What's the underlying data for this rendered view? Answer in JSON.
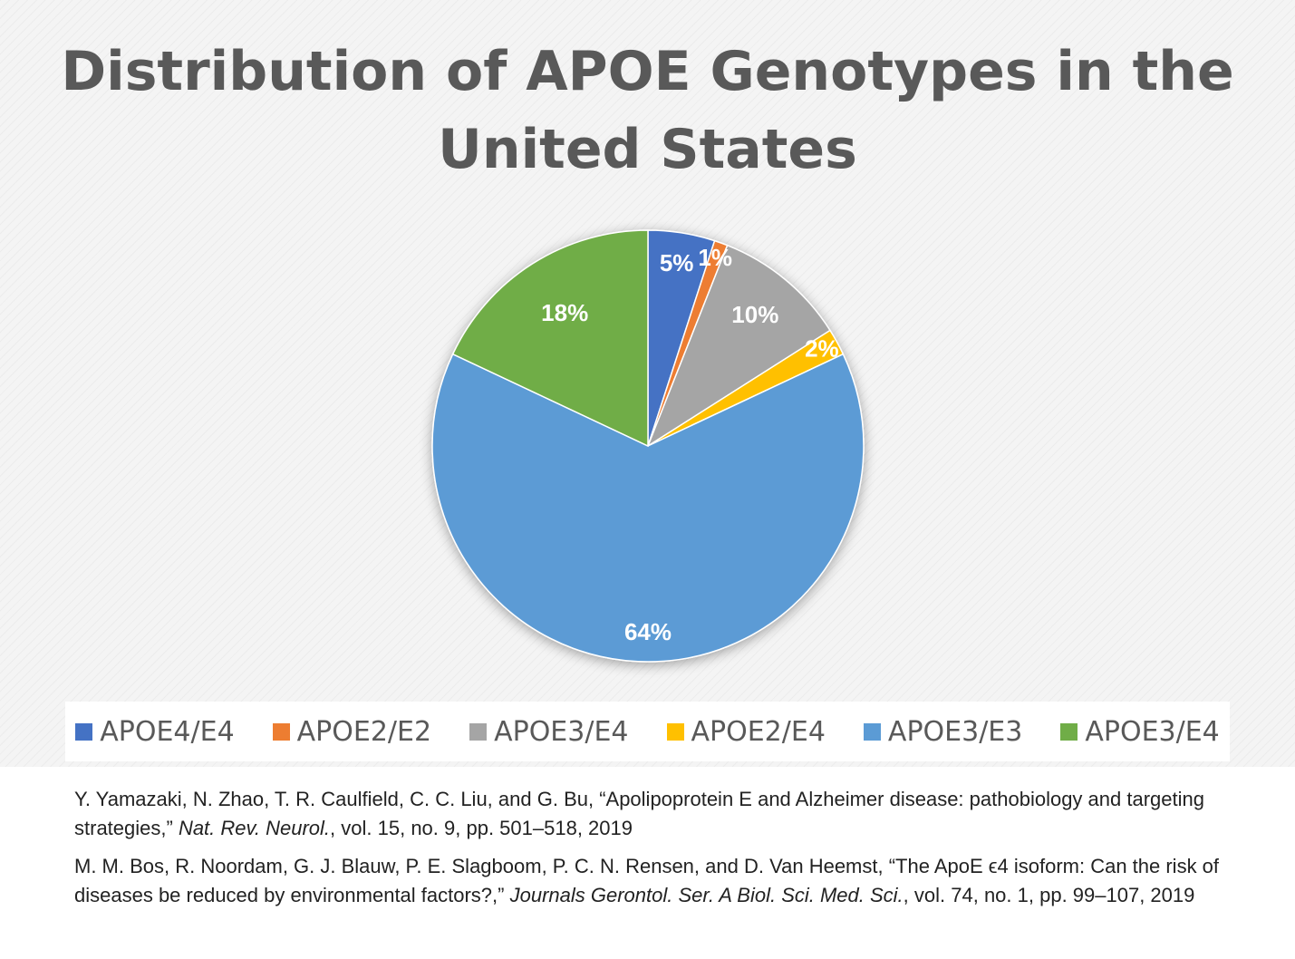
{
  "chart_data": {
    "type": "pie",
    "title": "Distribution of APOE Genotypes in the United States",
    "slices": [
      {
        "label": "APOE4/E4",
        "value": 5,
        "display": "5%",
        "color": "#4472c4"
      },
      {
        "label": "APOE2/E2",
        "value": 1,
        "display": "1%",
        "color": "#ed7d31"
      },
      {
        "label": "APOE3/E4",
        "value": 10,
        "display": "10%",
        "color": "#a5a5a5"
      },
      {
        "label": "APOE2/E4",
        "value": 2,
        "display": "2%",
        "color": "#ffc000"
      },
      {
        "label": "APOE3/E3",
        "value": 64,
        "display": "64%",
        "color": "#5b9bd5"
      },
      {
        "label": "APOE3/E4",
        "value": 18,
        "display": "18%",
        "color": "#70ad47"
      }
    ],
    "legend_position": "bottom"
  },
  "references": [
    {
      "pre": "Y. Yamazaki, N. Zhao, T. R. Caulfield, C. C. Liu, and G. Bu, “Apolipoprotein E and Alzheimer disease: pathobiology and targeting   strategies,” ",
      "journal": "Nat. Rev. Neurol.",
      "post": ", vol. 15, no. 9, pp. 501–518, 2019"
    },
    {
      "pre": "M. M. Bos, R. Noordam, G. J. Blauw, P. E. Slagboom, P. C. N. Rensen, and D. Van Heemst, “The ApoE ϵ4 isoform: Can the risk of diseases be reduced by environmental factors?,” ",
      "journal": "Journals Gerontol. Ser. A Biol. Sci. Med. Sci.",
      "post": ", vol. 74, no. 1, pp. 99–107, 2019"
    }
  ]
}
